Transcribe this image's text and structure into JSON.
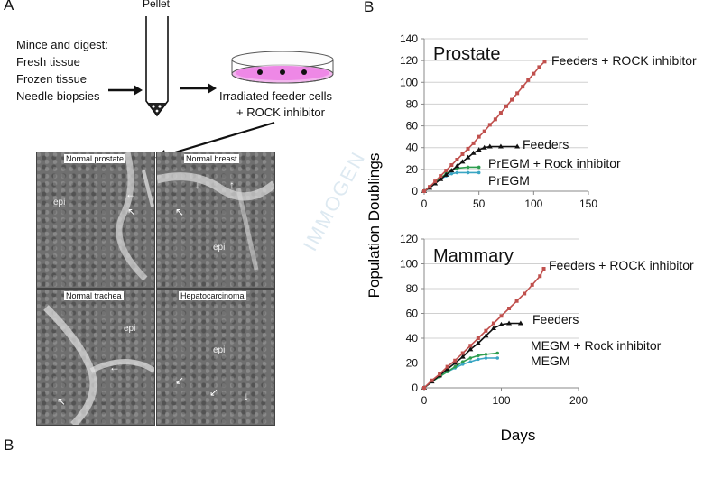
{
  "panel_a": {
    "letter_top": "A",
    "letter_bottom": "B",
    "pellet_label": "Pellet",
    "mince_lines": [
      "Mince and digest:",
      "Fresh tissue",
      "Frozen tissue",
      "Needle biopsies"
    ],
    "dish_label_line1": "Irradiated feeder cells",
    "dish_label_line2": "+ ROCK inhibitor",
    "micrographs": [
      {
        "title": "Normal prostate",
        "label": "epi"
      },
      {
        "title": "Normal breast",
        "label": "epi"
      },
      {
        "title": "Normal trachea",
        "label": "epi"
      },
      {
        "title": "Hepatocarcinoma",
        "label": "epi"
      }
    ],
    "watermark": "IMMOGEN"
  },
  "panel_b": {
    "letter": "B",
    "ylabel": "Population Doublings",
    "xlabel": "Days"
  },
  "chart_data": [
    {
      "type": "line",
      "title": "Prostate",
      "xlim": [
        0,
        150
      ],
      "ylim": [
        0,
        140
      ],
      "xticks": [
        0,
        50,
        100,
        150
      ],
      "yticks": [
        0,
        20,
        40,
        60,
        80,
        100,
        120,
        140
      ],
      "series": [
        {
          "name": "Feeders + ROCK inhibitor",
          "color": "#c0504d",
          "marker": "square",
          "x": [
            0,
            5,
            10,
            15,
            20,
            25,
            30,
            35,
            40,
            45,
            50,
            55,
            60,
            65,
            70,
            75,
            80,
            85,
            90,
            95,
            100,
            105,
            110
          ],
          "y": [
            0,
            4,
            9,
            14,
            19,
            24,
            29,
            34,
            39,
            44,
            50,
            55,
            61,
            66,
            72,
            78,
            84,
            90,
            96,
            102,
            108,
            114,
            119
          ]
        },
        {
          "name": "Feeders",
          "color": "#111111",
          "marker": "triangle",
          "x": [
            0,
            5,
            10,
            15,
            20,
            25,
            30,
            35,
            40,
            45,
            50,
            55,
            60,
            70,
            85
          ],
          "y": [
            0,
            3,
            7,
            11,
            15,
            19,
            23,
            27,
            31,
            35,
            38,
            40,
            41,
            41,
            41
          ]
        },
        {
          "name": "PrEGM + Rock inhibitor",
          "color": "#2e9e4f",
          "marker": "circle",
          "x": [
            0,
            5,
            10,
            15,
            20,
            25,
            30,
            40,
            50
          ],
          "y": [
            0,
            4,
            8,
            12,
            16,
            19,
            21,
            22,
            22
          ]
        },
        {
          "name": "PrEGM",
          "color": "#3aa6c4",
          "marker": "circle",
          "x": [
            0,
            5,
            10,
            15,
            20,
            25,
            30,
            40,
            50
          ],
          "y": [
            0,
            4,
            8,
            11,
            14,
            16,
            17,
            17,
            17
          ]
        }
      ]
    },
    {
      "type": "line",
      "title": "Mammary",
      "xlim": [
        0,
        200
      ],
      "ylim": [
        0,
        120
      ],
      "xticks": [
        0,
        100,
        200
      ],
      "yticks": [
        0,
        20,
        40,
        60,
        80,
        100,
        120
      ],
      "series": [
        {
          "name": "Feeders + ROCK inhibitor",
          "color": "#c0504d",
          "marker": "square",
          "x": [
            0,
            10,
            20,
            30,
            40,
            50,
            60,
            70,
            80,
            90,
            100,
            110,
            120,
            130,
            140,
            150,
            155
          ],
          "y": [
            0,
            6,
            11,
            17,
            22,
            28,
            34,
            40,
            46,
            52,
            58,
            64,
            70,
            76,
            83,
            90,
            96
          ]
        },
        {
          "name": "Feeders",
          "color": "#111111",
          "marker": "triangle",
          "x": [
            0,
            10,
            20,
            30,
            40,
            50,
            60,
            70,
            80,
            90,
            100,
            110,
            125
          ],
          "y": [
            0,
            5,
            10,
            15,
            20,
            25,
            31,
            36,
            42,
            48,
            51,
            52,
            52
          ]
        },
        {
          "name": "MEGM + Rock inhibitor",
          "color": "#2e9e4f",
          "marker": "circle",
          "x": [
            0,
            10,
            20,
            30,
            40,
            50,
            60,
            70,
            80,
            95
          ],
          "y": [
            0,
            5,
            9,
            13,
            17,
            21,
            24,
            26,
            27,
            28
          ]
        },
        {
          "name": "MEGM",
          "color": "#3aa6c4",
          "marker": "circle",
          "x": [
            0,
            10,
            20,
            30,
            40,
            50,
            60,
            70,
            80,
            95
          ],
          "y": [
            0,
            5,
            9,
            13,
            16,
            19,
            21,
            23,
            24,
            24
          ]
        }
      ]
    }
  ]
}
